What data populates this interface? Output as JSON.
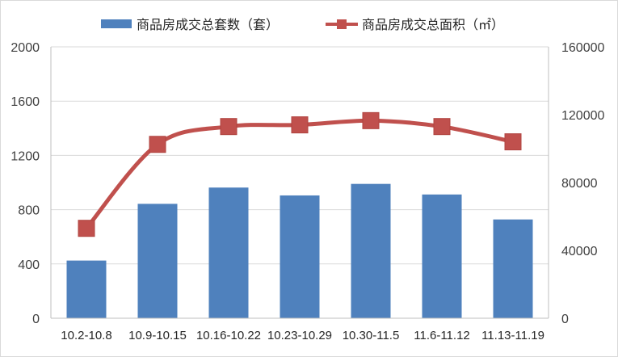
{
  "chart_data": {
    "type": "bar+line",
    "categories": [
      "10.2-10.8",
      "10.9-10.15",
      "10.16-10.22",
      "10.23-10.29",
      "10.30-11.5",
      "11.6-11.12",
      "11.13-11.19"
    ],
    "series": [
      {
        "name": "商品房成交总套数（套）",
        "type": "bar",
        "axis": "left",
        "color": "#4f81bd",
        "values": [
          425,
          843,
          963,
          905,
          990,
          912,
          728
        ]
      },
      {
        "name": "商品房成交总面积（㎡）",
        "type": "line",
        "axis": "right",
        "color": "#c0504d",
        "values": [
          53000,
          102500,
          113000,
          114000,
          116500,
          113000,
          104000
        ]
      }
    ],
    "y_left": {
      "ylim": [
        0,
        2000
      ],
      "ticks": [
        0,
        400,
        800,
        1200,
        1600,
        2000
      ]
    },
    "y_right": {
      "ylim": [
        0,
        160000
      ],
      "ticks": [
        0,
        40000,
        80000,
        120000,
        160000
      ]
    },
    "grid": true,
    "legend_position": "top"
  }
}
